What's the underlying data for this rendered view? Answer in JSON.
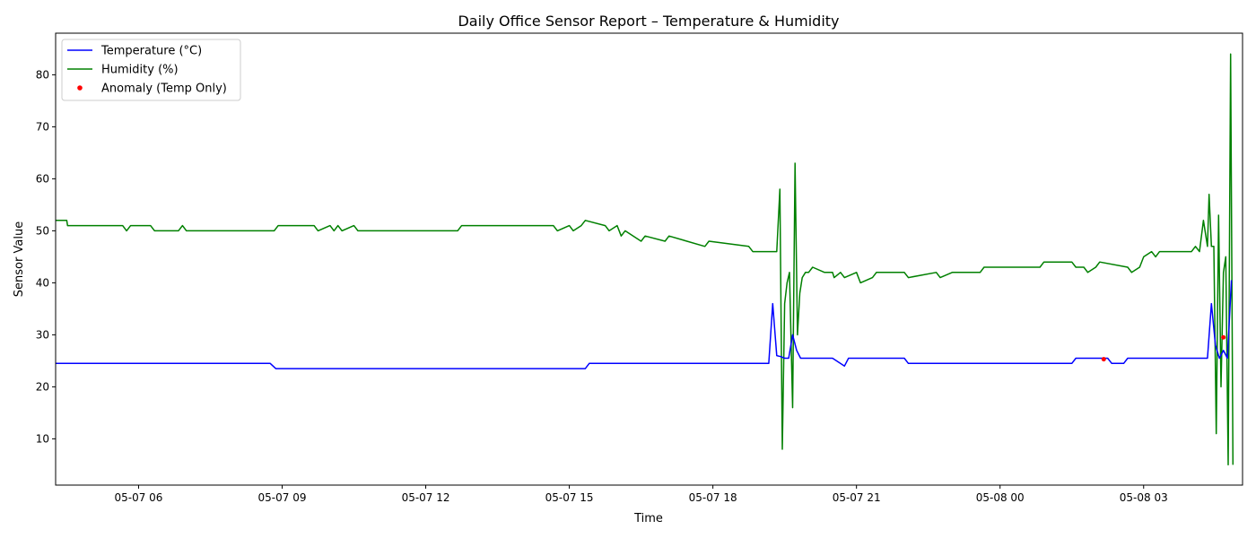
{
  "chart_data": {
    "type": "line",
    "title": "Daily Office Sensor Report – Temperature & Humidity",
    "xlabel": "Time",
    "ylabel": "Sensor Value",
    "xlim": [
      "05-07 04:16",
      "05-08 05:04"
    ],
    "ylim": [
      1.1,
      88
    ],
    "x_ticks": [
      "05-07 06",
      "05-07 09",
      "05-07 12",
      "05-07 15",
      "05-07 18",
      "05-07 21",
      "05-08 00",
      "05-08 03"
    ],
    "y_ticks": [
      10,
      20,
      30,
      40,
      50,
      60,
      70,
      80
    ],
    "grid": false,
    "legend": {
      "placement": "top-left",
      "entries": [
        "Temperature (°C)",
        "Humidity (%)",
        "Anomaly (Temp Only)"
      ]
    },
    "series": [
      {
        "name": "Temperature (°C)",
        "color": "#0000ff",
        "style": "line",
        "x": [
          "05-07 04:10",
          "05-07 05:30",
          "05-07 07:00",
          "05-07 08:45",
          "05-07 08:52",
          "05-07 10:30",
          "05-07 12:00",
          "05-07 14:00",
          "05-07 15:20",
          "05-07 15:25",
          "05-07 16:30",
          "05-07 18:00",
          "05-07 19:10",
          "05-07 19:15",
          "05-07 19:20",
          "05-07 19:25",
          "05-07 19:30",
          "05-07 19:35",
          "05-07 19:40",
          "05-07 19:45",
          "05-07 19:50",
          "05-07 20:00",
          "05-07 20:30",
          "05-07 20:45",
          "05-07 20:50",
          "05-07 21:30",
          "05-07 22:00",
          "05-07 22:05",
          "05-07 22:50",
          "05-07 23:30",
          "05-08 00:30",
          "05-08 01:30",
          "05-08 01:35",
          "05-08 02:15",
          "05-08 02:20",
          "05-08 02:35",
          "05-08 02:40",
          "05-08 03:30",
          "05-08 04:20",
          "05-08 04:25",
          "05-08 04:30",
          "05-08 04:35",
          "05-08 04:40",
          "05-08 04:45",
          "05-08 04:50"
        ],
        "y": [
          24.5,
          24.5,
          24.5,
          24.5,
          23.5,
          23.5,
          23.5,
          23.5,
          23.5,
          24.5,
          24.5,
          24.5,
          24.5,
          36,
          26,
          25.8,
          25.5,
          25.5,
          30,
          27,
          25.5,
          25.5,
          25.5,
          24,
          25.5,
          25.5,
          25.5,
          24.5,
          24.5,
          24.5,
          24.5,
          24.5,
          25.5,
          25.5,
          24.5,
          24.5,
          25.5,
          25.5,
          25.5,
          36,
          28,
          25.5,
          27,
          25.5,
          40.5
        ]
      },
      {
        "name": "Humidity (%)",
        "color": "#008000",
        "style": "line",
        "x": [
          "05-07 04:10",
          "05-07 04:30",
          "05-07 04:31",
          "05-07 05:40",
          "05-07 05:45",
          "05-07 05:50",
          "05-07 06:15",
          "05-07 06:20",
          "05-07 06:50",
          "05-07 06:55",
          "05-07 07:00",
          "05-07 08:50",
          "05-07 08:55",
          "05-07 09:40",
          "05-07 09:45",
          "05-07 10:00",
          "05-07 10:05",
          "05-07 10:10",
          "05-07 10:15",
          "05-07 10:30",
          "05-07 10:35",
          "05-07 12:40",
          "05-07 12:45",
          "05-07 14:40",
          "05-07 14:45",
          "05-07 15:00",
          "05-07 15:05",
          "05-07 15:15",
          "05-07 15:20",
          "05-07 15:45",
          "05-07 15:50",
          "05-07 16:00",
          "05-07 16:05",
          "05-07 16:10",
          "05-07 16:30",
          "05-07 16:35",
          "05-07 17:00",
          "05-07 17:05",
          "05-07 17:50",
          "05-07 17:55",
          "05-07 18:45",
          "05-07 18:50",
          "05-07 19:20",
          "05-07 19:24",
          "05-07 19:27",
          "05-07 19:30",
          "05-07 19:33",
          "05-07 19:36",
          "05-07 19:40",
          "05-07 19:43",
          "05-07 19:46",
          "05-07 19:49",
          "05-07 19:52",
          "05-07 19:56",
          "05-07 20:00",
          "05-07 20:05",
          "05-07 20:20",
          "05-07 20:30",
          "05-07 20:32",
          "05-07 20:40",
          "05-07 20:45",
          "05-07 21:00",
          "05-07 21:05",
          "05-07 21:20",
          "05-07 21:25",
          "05-07 22:00",
          "05-07 22:05",
          "05-07 22:40",
          "05-07 22:45",
          "05-07 23:00",
          "05-07 23:35",
          "05-07 23:40",
          "05-08 00:50",
          "05-08 00:55",
          "05-08 01:30",
          "05-08 01:35",
          "05-08 01:45",
          "05-08 01:50",
          "05-08 02:00",
          "05-08 02:05",
          "05-08 02:40",
          "05-08 02:45",
          "05-08 02:55",
          "05-08 03:00",
          "05-08 03:10",
          "05-08 03:15",
          "05-08 03:20",
          "05-08 03:25",
          "05-08 03:30",
          "05-08 04:00",
          "05-08 04:05",
          "05-08 04:10",
          "05-08 04:15",
          "05-08 04:20",
          "05-08 04:22",
          "05-08 04:25",
          "05-08 04:28",
          "05-08 04:31",
          "05-08 04:34",
          "05-08 04:37",
          "05-08 04:40",
          "05-08 04:43",
          "05-08 04:46",
          "05-08 04:49",
          "05-08 04:52"
        ],
        "y": [
          52,
          52,
          51,
          51,
          50,
          51,
          51,
          50,
          50,
          51,
          50,
          50,
          51,
          51,
          50,
          51,
          50,
          51,
          50,
          51,
          50,
          50,
          51,
          51,
          50,
          51,
          50,
          51,
          52,
          51,
          50,
          51,
          49,
          50,
          48,
          49,
          48,
          49,
          47,
          48,
          47,
          46,
          46,
          58,
          8,
          36,
          40,
          42,
          16,
          63,
          30,
          38,
          41,
          42,
          42,
          43,
          42,
          42,
          41,
          42,
          41,
          42,
          40,
          41,
          42,
          42,
          41,
          42,
          41,
          42,
          42,
          43,
          43,
          44,
          44,
          43,
          43,
          42,
          43,
          44,
          43,
          42,
          43,
          45,
          46,
          45,
          46,
          46,
          46,
          46,
          47,
          46,
          52,
          47,
          57,
          47,
          47,
          11,
          53,
          20,
          42,
          45,
          5,
          84,
          5
        ]
      },
      {
        "name": "Anomaly (Temp Only)",
        "color": "#ff0000",
        "style": "scatter",
        "x": [
          "05-08 02:10",
          "05-08 04:40"
        ],
        "y": [
          25.3,
          29.5
        ]
      }
    ]
  }
}
